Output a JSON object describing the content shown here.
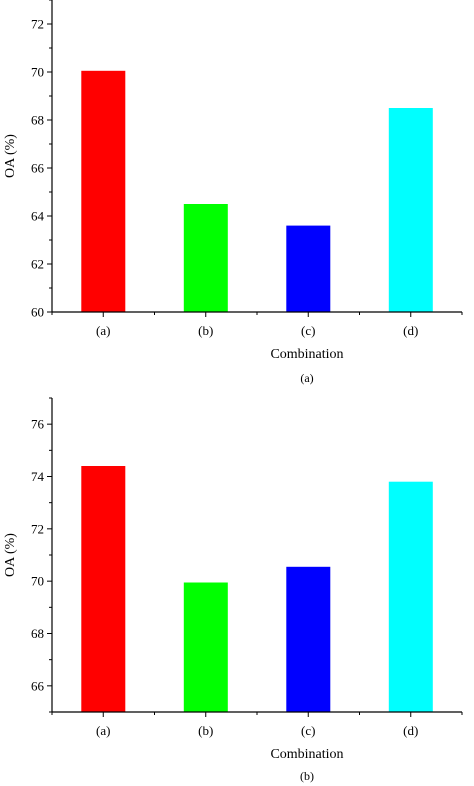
{
  "chart_data": [
    {
      "type": "bar",
      "panel_label": "(a)",
      "categories": [
        "(a)",
        "(b)",
        "(c)",
        "(d)"
      ],
      "values": [
        70.05,
        64.5,
        63.6,
        68.5
      ],
      "colors": [
        "#ff0000",
        "#00ff00",
        "#0000ff",
        "#00ffff"
      ],
      "xlabel": "Combination",
      "ylabel": "OA (%)",
      "ylim": [
        60,
        73
      ],
      "yticks": [
        60,
        62,
        64,
        66,
        68,
        70,
        72
      ],
      "grid": false,
      "legend": "none"
    },
    {
      "type": "bar",
      "panel_label": "(b)",
      "categories": [
        "(a)",
        "(b)",
        "(c)",
        "(d)"
      ],
      "values": [
        74.4,
        69.95,
        70.55,
        73.8
      ],
      "colors": [
        "#ff0000",
        "#00ff00",
        "#0000ff",
        "#00ffff"
      ],
      "xlabel": "Combination",
      "ylabel": "OA (%)",
      "ylim": [
        65,
        77
      ],
      "yticks": [
        66,
        68,
        70,
        72,
        74,
        76
      ],
      "grid": false,
      "legend": "none"
    }
  ]
}
